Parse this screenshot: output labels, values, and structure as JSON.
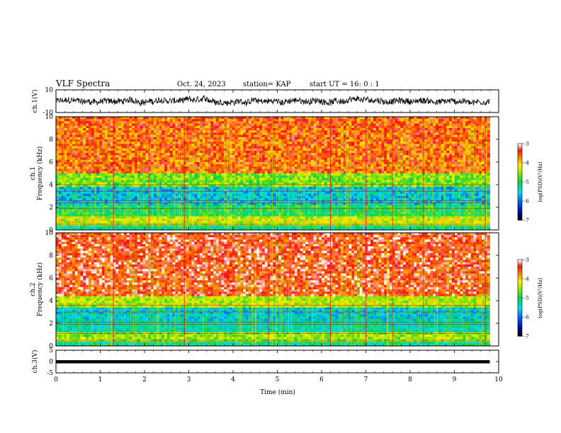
{
  "header": {
    "title": "VLF Spectra",
    "date": "Oct. 24, 2023",
    "station": "station= KAP",
    "start_ut": "start  UT =   16: 0  : 1"
  },
  "chart_data": [
    {
      "type": "line",
      "panel": "ch1-waveform",
      "ylabel": "ch.1(V)",
      "ylim": [
        -10,
        10
      ],
      "yticks": [
        "10",
        "-10"
      ],
      "xlim": [
        0,
        10
      ],
      "xticks": [
        "0",
        "1",
        "2",
        "3",
        "4",
        "5",
        "6",
        "7",
        "8",
        "9",
        "10"
      ],
      "x_end": 9.8,
      "y_center": 0,
      "y_noise_amplitude": 5.5,
      "color": "#000000"
    },
    {
      "type": "heatmap",
      "panel": "ch1-spectrogram",
      "ylabel": "ch.1\nFrequency (kHz)",
      "ylabel_lines": [
        "ch.1",
        "Frequency (kHz)"
      ],
      "ylim": [
        0,
        10
      ],
      "yticks": [
        "0",
        "2",
        "4",
        "6",
        "8",
        "10"
      ],
      "xlim": [
        0,
        10
      ],
      "x_end": 9.8,
      "colorbar": {
        "label": "log(PSD)(V²/Hz)",
        "range": [
          -7,
          -3
        ],
        "ticks": [
          "-3",
          "-4",
          "-5",
          "-6",
          "-7"
        ]
      },
      "bands": [
        {
          "f_min": 0.0,
          "f_max": 0.4,
          "log_psd": -5.2
        },
        {
          "f_min": 0.4,
          "f_max": 1.2,
          "log_psd": -4.3
        },
        {
          "f_min": 1.2,
          "f_max": 2.2,
          "log_psd": -5.0
        },
        {
          "f_min": 2.2,
          "f_max": 3.8,
          "log_psd": -5.6
        },
        {
          "f_min": 3.8,
          "f_max": 5.0,
          "log_psd": -4.6
        },
        {
          "f_min": 5.0,
          "f_max": 10.0,
          "log_psd": -3.6
        }
      ],
      "horizontal_lines_khz": [
        0.5,
        1.9,
        2.4,
        2.6,
        3.4,
        4.0
      ],
      "vertical_lines_min": [
        1.3,
        2.1,
        2.9,
        6.2,
        7.0,
        7.6,
        8.3,
        9.7
      ]
    },
    {
      "type": "heatmap",
      "panel": "ch2-spectrogram",
      "ylabel": "ch.2\nFrequency (kHz)",
      "ylabel_lines": [
        "ch.2",
        "Frequency (kHz)"
      ],
      "ylim": [
        0,
        10
      ],
      "yticks": [
        "0",
        "2",
        "4",
        "6",
        "8",
        "10"
      ],
      "xlim": [
        0,
        10
      ],
      "x_end": 9.8,
      "colorbar": {
        "label": "log(PSD)(V²/Hz)",
        "range": [
          -7,
          -3
        ],
        "ticks": [
          "-3",
          "-4",
          "-5",
          "-6",
          "-7"
        ]
      },
      "bands": [
        {
          "f_min": 0.0,
          "f_max": 0.4,
          "log_psd": -5.2
        },
        {
          "f_min": 0.4,
          "f_max": 1.2,
          "log_psd": -4.5
        },
        {
          "f_min": 1.2,
          "f_max": 2.2,
          "log_psd": -5.3
        },
        {
          "f_min": 2.2,
          "f_max": 3.4,
          "log_psd": -5.5
        },
        {
          "f_min": 3.4,
          "f_max": 4.5,
          "log_psd": -4.4
        },
        {
          "f_min": 4.5,
          "f_max": 10.0,
          "log_psd": -3.4
        }
      ],
      "horizontal_lines_khz": [
        0.5,
        1.1,
        1.9,
        2.1,
        3.0,
        3.6
      ],
      "vertical_lines_min": [
        1.3,
        2.9,
        4.8,
        6.2,
        7.0,
        7.6,
        8.3,
        9.7
      ]
    },
    {
      "type": "line",
      "panel": "ch3-waveform",
      "ylabel": "ch.3(V)",
      "ylim": [
        -5,
        5
      ],
      "yticks": [
        "5",
        "0",
        "-5"
      ],
      "xlim": [
        0,
        10
      ],
      "xticks": [
        "0",
        "1",
        "2",
        "3",
        "4",
        "5",
        "6",
        "7",
        "8",
        "9",
        "10"
      ],
      "xlabel": "Time (min)",
      "x_end": 9.8,
      "y_center": 0,
      "y_band": [
        -0.8,
        0.6
      ],
      "color": "#000000"
    }
  ]
}
